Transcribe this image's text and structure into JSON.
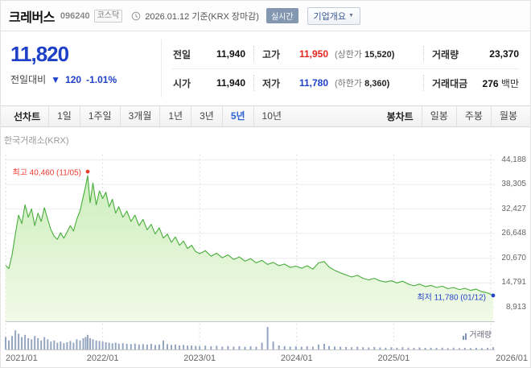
{
  "header": {
    "name": "크레버스",
    "code": "096240",
    "market_badge": "코스닥",
    "date_info": "2026.01.12 기준(KRX 장마감)",
    "realtime_badge": "실시간",
    "overview_button": "기업개요",
    "overview_arrow": "▼"
  },
  "price": {
    "current": "11,820",
    "change_label": "전일대비",
    "change_arrow": "▼",
    "change_value": "120",
    "change_percent": "-1.01%"
  },
  "quote": {
    "prev_label": "전일",
    "prev_value": "11,940",
    "high_label": "고가",
    "high_value": "11,950",
    "upper_label": "(상한가",
    "upper_value": "15,520)",
    "volume_label": "거래량",
    "volume_value": "23,370",
    "open_label": "시가",
    "open_value": "11,940",
    "low_label": "저가",
    "low_value": "11,780",
    "lower_label": "(하한가",
    "lower_value": "8,360)",
    "amount_label": "거래대금",
    "amount_value": "276",
    "amount_unit": "백만"
  },
  "toolbar": {
    "line_chart_label": "선차트",
    "periods": [
      {
        "label": "1일"
      },
      {
        "label": "1주일"
      },
      {
        "label": "3개월"
      },
      {
        "label": "1년"
      },
      {
        "label": "3년"
      },
      {
        "label": "5년",
        "selected": true
      },
      {
        "label": "10년"
      }
    ],
    "candle_chart_label": "봉차트",
    "candles": [
      {
        "label": "일봉"
      },
      {
        "label": "주봉"
      },
      {
        "label": "월봉"
      }
    ]
  },
  "chart_data": {
    "type": "area",
    "source": "한국거래소(KRX)",
    "volume_legend": "거래량",
    "x_labels": [
      "2021/01",
      "2022/01",
      "2023/01",
      "2024/01",
      "2025/01",
      "2026/01"
    ],
    "x_ticks_t": [
      0,
      12,
      24,
      36,
      48,
      60
    ],
    "t_max": 60.5,
    "y_min": 5600,
    "y_max": 45500,
    "y_ticks": [
      44188,
      38305,
      32427,
      26648,
      20670,
      14791,
      8913
    ],
    "y_tick_labels": [
      "44,188",
      "38,305",
      "32,427",
      "26,648",
      "20,670",
      "14,791",
      "8,913"
    ],
    "annotations": {
      "high": {
        "label": "최고 40,460 (11/05)",
        "value": 40460,
        "t": 10.15
      },
      "low": {
        "label": "최저 11,780 (01/12)",
        "value": 11780,
        "t": 60.3
      }
    },
    "line_color": "#47ad3c",
    "fill_top": "#cdeebd",
    "fill_bottom": "#f1fae8",
    "volume_color": "#94a6c2",
    "high_color": "#ef3b30",
    "low_color": "#2545c8",
    "points": [
      [
        0,
        19000,
        0.55
      ],
      [
        0.4,
        18200,
        0.4
      ],
      [
        0.8,
        21500,
        0.6
      ],
      [
        1.2,
        26500,
        0.85
      ],
      [
        1.6,
        31000,
        0.7
      ],
      [
        2.0,
        29000,
        0.55
      ],
      [
        2.4,
        33500,
        0.65
      ],
      [
        2.8,
        30500,
        0.5
      ],
      [
        3.2,
        32500,
        0.45
      ],
      [
        3.6,
        28500,
        0.6
      ],
      [
        4.0,
        31500,
        0.5
      ],
      [
        4.4,
        29500,
        0.4
      ],
      [
        4.8,
        32800,
        0.55
      ],
      [
        5.2,
        30000,
        0.45
      ],
      [
        5.6,
        27500,
        0.35
      ],
      [
        6.0,
        26000,
        0.4
      ],
      [
        6.4,
        25200,
        0.3
      ],
      [
        6.8,
        26800,
        0.35
      ],
      [
        7.2,
        25500,
        0.28
      ],
      [
        7.6,
        27000,
        0.32
      ],
      [
        8.0,
        28500,
        0.38
      ],
      [
        8.4,
        27200,
        0.3
      ],
      [
        8.8,
        30000,
        0.45
      ],
      [
        9.2,
        32000,
        0.4
      ],
      [
        9.6,
        35500,
        0.5
      ],
      [
        9.9,
        38000,
        0.55
      ],
      [
        10.15,
        40460,
        0.65
      ],
      [
        10.45,
        34000,
        0.5
      ],
      [
        10.8,
        38700,
        0.45
      ],
      [
        11.2,
        33500,
        0.4
      ],
      [
        11.6,
        36800,
        0.38
      ],
      [
        12.0,
        35000,
        0.35
      ],
      [
        12.4,
        36500,
        0.32
      ],
      [
        12.8,
        33000,
        0.3
      ],
      [
        13.2,
        34800,
        0.28
      ],
      [
        13.6,
        31500,
        0.3
      ],
      [
        14.0,
        33000,
        0.26
      ],
      [
        14.5,
        30500,
        0.28
      ],
      [
        15.0,
        32000,
        0.25
      ],
      [
        15.5,
        29500,
        0.24
      ],
      [
        16.0,
        31000,
        0.26
      ],
      [
        16.5,
        28500,
        0.22
      ],
      [
        17.0,
        30000,
        0.24
      ],
      [
        17.5,
        27500,
        0.22
      ],
      [
        18.0,
        28800,
        0.25
      ],
      [
        18.5,
        26500,
        0.2
      ],
      [
        19.0,
        28000,
        0.22
      ],
      [
        19.5,
        25500,
        0.4
      ],
      [
        20.0,
        26500,
        0.24
      ],
      [
        20.5,
        24500,
        0.2
      ],
      [
        21.0,
        25800,
        0.22
      ],
      [
        21.5,
        23800,
        0.18
      ],
      [
        22.0,
        24800,
        0.2
      ],
      [
        22.5,
        23000,
        0.17
      ],
      [
        23.0,
        23800,
        0.18
      ],
      [
        23.5,
        22300,
        0.16
      ],
      [
        24.0,
        21800,
        0.15
      ],
      [
        24.7,
        22500,
        0.17
      ],
      [
        25.4,
        21200,
        0.14
      ],
      [
        26.1,
        21900,
        0.16
      ],
      [
        26.8,
        20800,
        0.13
      ],
      [
        27.5,
        21500,
        0.15
      ],
      [
        28.2,
        20400,
        0.13
      ],
      [
        28.9,
        21000,
        0.14
      ],
      [
        29.6,
        20000,
        0.12
      ],
      [
        30.3,
        20600,
        0.14
      ],
      [
        31.0,
        19600,
        0.12
      ],
      [
        31.7,
        20200,
        0.3
      ],
      [
        32.4,
        19200,
        1.0
      ],
      [
        33.1,
        19700,
        0.35
      ],
      [
        33.8,
        18900,
        0.18
      ],
      [
        34.5,
        19300,
        0.15
      ],
      [
        35.2,
        18500,
        0.13
      ],
      [
        35.9,
        18800,
        0.14
      ],
      [
        36.6,
        18300,
        0.12
      ],
      [
        37.3,
        18900,
        0.14
      ],
      [
        38.0,
        18100,
        0.12
      ],
      [
        38.7,
        19600,
        0.22
      ],
      [
        39.4,
        19900,
        0.25
      ],
      [
        40.0,
        18600,
        0.15
      ],
      [
        40.7,
        17800,
        0.13
      ],
      [
        41.4,
        17200,
        0.12
      ],
      [
        42.1,
        16700,
        0.11
      ],
      [
        42.8,
        16200,
        0.1
      ],
      [
        43.5,
        16600,
        0.12
      ],
      [
        44.2,
        15900,
        0.1
      ],
      [
        44.9,
        15500,
        0.09
      ],
      [
        45.6,
        15900,
        0.11
      ],
      [
        46.3,
        15300,
        0.09
      ],
      [
        47.0,
        15000,
        0.08
      ],
      [
        47.7,
        15300,
        0.1
      ],
      [
        48.4,
        14800,
        0.08
      ],
      [
        49.1,
        15200,
        0.1
      ],
      [
        49.8,
        14500,
        0.08
      ],
      [
        50.5,
        14100,
        0.07
      ],
      [
        51.2,
        14500,
        0.09
      ],
      [
        51.9,
        13900,
        0.07
      ],
      [
        52.6,
        14200,
        0.08
      ],
      [
        53.3,
        13700,
        0.07
      ],
      [
        54.0,
        14000,
        0.08
      ],
      [
        54.7,
        13400,
        0.06
      ],
      [
        55.4,
        13700,
        0.08
      ],
      [
        56.1,
        13200,
        0.06
      ],
      [
        56.8,
        13500,
        0.07
      ],
      [
        57.5,
        13000,
        0.06
      ],
      [
        58.2,
        13300,
        0.08
      ],
      [
        58.9,
        12700,
        0.06
      ],
      [
        59.6,
        12400,
        0.07
      ],
      [
        60.3,
        11780,
        0.1
      ]
    ]
  },
  "colors": {
    "up": "#e5241c",
    "down": "#1e40c8"
  }
}
